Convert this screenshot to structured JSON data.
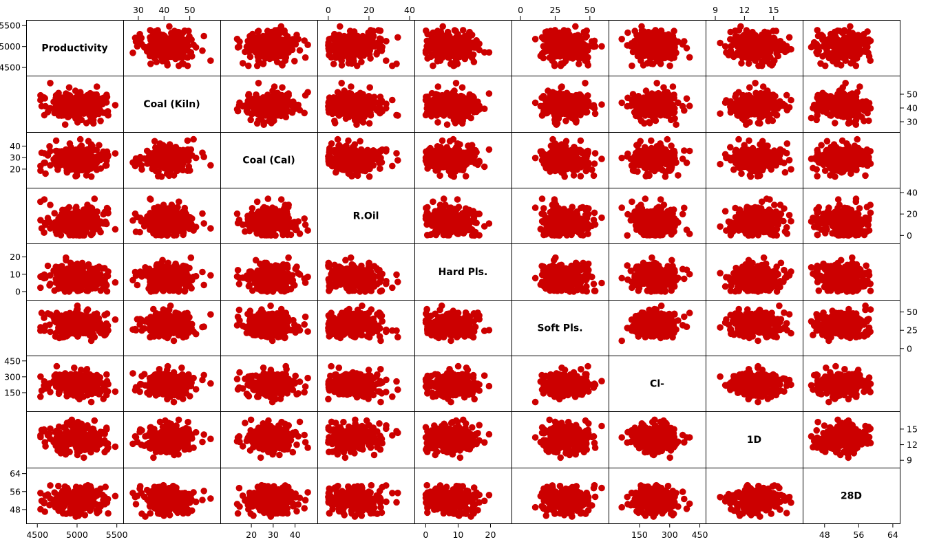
{
  "chart_data": {
    "type": "scatter",
    "chart_subtype": "scatterplot-matrix",
    "point_color": "#cc0000",
    "grid": false,
    "n_points": 260,
    "variables": [
      {
        "name": "Productivity",
        "range": [
          4420,
          5520
        ],
        "ticks": [
          4500,
          5000,
          5500
        ],
        "tick_labels": [
          "4500",
          "5000",
          "5500"
        ],
        "mean": 5000,
        "sd": 190
      },
      {
        "name": "Coal (Kiln)",
        "range": [
          26,
          60
        ],
        "ticks": [
          30,
          40,
          50
        ],
        "tick_labels": [
          "30",
          "40",
          "50"
        ],
        "mean": 42,
        "sd": 5
      },
      {
        "name": "Coal (Cal)",
        "range": [
          8,
          48
        ],
        "ticks": [
          20,
          30,
          40
        ],
        "tick_labels": [
          "20",
          "30",
          "40"
        ],
        "mean": 29,
        "sd": 6
      },
      {
        "name": "R.Oil",
        "range": [
          -3,
          40
        ],
        "ticks": [
          0,
          20,
          40
        ],
        "tick_labels": [
          "0",
          "20",
          "40"
        ],
        "mean": 13,
        "sd": 7,
        "min": 0
      },
      {
        "name": "Hard Pls.",
        "range": [
          -2,
          25
        ],
        "ticks": [
          0,
          10,
          20
        ],
        "tick_labels": [
          "0",
          "10",
          "20"
        ],
        "mean": 8,
        "sd": 4,
        "min": 0
      },
      {
        "name": "Soft Pls.",
        "range": [
          -3,
          60
        ],
        "ticks": [
          0,
          25,
          50
        ],
        "tick_labels": [
          "0",
          "25",
          "50"
        ],
        "mean": 33,
        "sd": 9,
        "min": 0
      },
      {
        "name": "Cl-",
        "range": [
          20,
          455
        ],
        "ticks": [
          150,
          300,
          450
        ],
        "tick_labels": [
          "150",
          "300",
          "450"
        ],
        "mean": 230,
        "sd": 60
      },
      {
        "name": "1D",
        "range": [
          8.5,
          17.5
        ],
        "ticks": [
          9,
          12,
          15
        ],
        "tick_labels": [
          "9",
          "12",
          "15"
        ],
        "mean": 13,
        "sd": 1.3
      },
      {
        "name": "28D",
        "range": [
          44,
          64.5
        ],
        "ticks": [
          48,
          56,
          64
        ],
        "tick_labels": [
          "48",
          "56",
          "64"
        ],
        "mean": 52.5,
        "sd": 2.8
      }
    ]
  }
}
